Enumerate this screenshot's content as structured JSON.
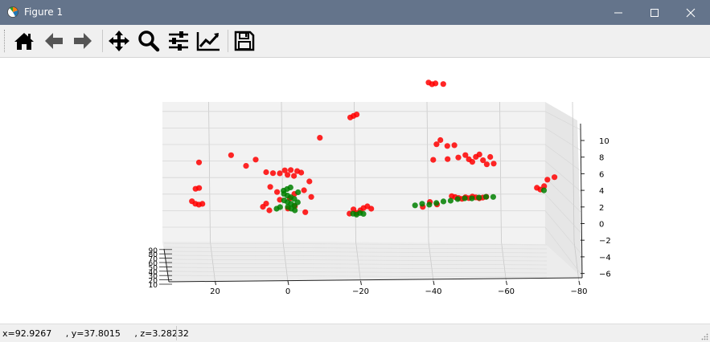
{
  "window": {
    "title": "Figure 1",
    "controls": [
      "minimize",
      "maximize",
      "close"
    ]
  },
  "toolbar": {
    "buttons": [
      {
        "name": "home",
        "icon": "home-icon"
      },
      {
        "name": "back",
        "icon": "back-arrow-icon"
      },
      {
        "name": "forward",
        "icon": "forward-arrow-icon"
      },
      {
        "name": "pan",
        "icon": "move-icon"
      },
      {
        "name": "zoom",
        "icon": "magnifier-icon"
      },
      {
        "name": "configure-subplots",
        "icon": "sliders-icon"
      },
      {
        "name": "edit-axis",
        "icon": "line-chart-icon"
      },
      {
        "name": "save",
        "icon": "floppy-disk-icon"
      }
    ]
  },
  "status": {
    "coordinates": "x=92.9267     , y=37.8015     , z=3.28232"
  },
  "colors": {
    "title_bar": "#64748b",
    "series_red": "#ff0000",
    "series_green": "#008000"
  },
  "chart_data": {
    "type": "scatter",
    "projection": "3d",
    "grid": true,
    "x_ticks": [
      "20",
      "0",
      "−20",
      "−40",
      "−60",
      "−80"
    ],
    "y_ticks": [
      "10",
      "20",
      "30",
      "40",
      "50",
      "60",
      "70",
      "80",
      "90"
    ],
    "z_ticks": [
      "10",
      "8",
      "6",
      "4",
      "2",
      "0",
      "−2",
      "−4",
      "−6"
    ],
    "series": [
      {
        "color": "#ff0000",
        "points": [
          [
            26,
            10,
            -3
          ],
          [
            25,
            12,
            -3.3
          ],
          [
            24,
            14,
            -3.4
          ],
          [
            23,
            15,
            -3.3
          ],
          [
            24,
            12,
            1.7
          ],
          [
            25,
            10,
            -1.5
          ],
          [
            24,
            11,
            -1.4
          ],
          [
            15,
            20,
            2.6
          ],
          [
            11,
            15,
            1.3
          ],
          [
            8,
            30,
            2.1
          ],
          [
            5,
            35,
            0.6
          ],
          [
            3,
            40,
            0.5
          ],
          [
            1,
            45,
            0.5
          ],
          [
            0,
            30,
            0.8
          ],
          [
            -1,
            40,
            0.3
          ],
          [
            -2,
            45,
            0.9
          ],
          [
            -3,
            50,
            0.2
          ],
          [
            -4,
            55,
            0.8
          ],
          [
            -5,
            50,
            0.6
          ],
          [
            2,
            35,
            -1.8
          ],
          [
            -6,
            60,
            -1.5
          ],
          [
            -7,
            40,
            -0.5
          ],
          [
            -3,
            45,
            -2
          ],
          [
            -2,
            55,
            -2.5
          ],
          [
            4,
            30,
            -1.2
          ],
          [
            5,
            35,
            -3.2
          ],
          [
            6,
            30,
            -3.6
          ],
          [
            4,
            40,
            -4
          ],
          [
            -1,
            35,
            -3.8
          ],
          [
            -6,
            45,
            -4.2
          ],
          [
            -3,
            40,
            -3.5
          ],
          [
            1,
            45,
            -2.7
          ],
          [
            -8,
            60,
            -2.3
          ],
          [
            -10,
            45,
            4.8
          ],
          [
            -18,
            30,
            7.2
          ],
          [
            -19,
            35,
            7.4
          ],
          [
            -20,
            40,
            7.6
          ],
          [
            -20,
            45,
            -4.3
          ],
          [
            -21,
            40,
            -4
          ],
          [
            -22,
            45,
            -3.7
          ],
          [
            -19,
            35,
            -3.9
          ],
          [
            -24,
            40,
            -3.8
          ],
          [
            -23,
            42,
            -3.5
          ],
          [
            -18,
            38,
            -4.4
          ],
          [
            -40,
            50,
            11.5
          ],
          [
            -41,
            52,
            11.3
          ],
          [
            -42,
            54,
            11.4
          ],
          [
            -44,
            48,
            11.3
          ],
          [
            -43,
            40,
            4.5
          ],
          [
            -42,
            42,
            4.0
          ],
          [
            -45,
            44,
            3.8
          ],
          [
            -47,
            46,
            3.9
          ],
          [
            -41,
            38,
            2.1
          ],
          [
            -45,
            40,
            2.2
          ],
          [
            -48,
            43,
            2.4
          ],
          [
            -50,
            45,
            2.7
          ],
          [
            -51,
            47,
            2.2
          ],
          [
            -52,
            49,
            1.9
          ],
          [
            -53,
            50,
            2.5
          ],
          [
            -54,
            51,
            2.8
          ],
          [
            -55,
            52,
            2.1
          ],
          [
            -56,
            50,
            1.6
          ],
          [
            -57,
            52,
            2.5
          ],
          [
            -58,
            54,
            1.7
          ],
          [
            -46,
            35,
            -2.3
          ],
          [
            -47,
            38,
            -2.4
          ],
          [
            -48,
            40,
            -2.5
          ],
          [
            -49,
            42,
            -2.6
          ],
          [
            -50,
            44,
            -2.4
          ],
          [
            -51,
            46,
            -2.5
          ],
          [
            -52,
            48,
            -2.3
          ],
          [
            -53,
            50,
            -2.4
          ],
          [
            -54,
            52,
            -2.5
          ],
          [
            -55,
            54,
            -2.4
          ],
          [
            -56,
            56,
            -2.3
          ],
          [
            -40,
            35,
            -3.0
          ],
          [
            -42,
            37,
            -3.3
          ],
          [
            -38,
            33,
            -3.6
          ],
          [
            -70,
            60,
            -1.2
          ],
          [
            -71,
            62,
            -1.4
          ],
          [
            -73,
            64,
            -0.2
          ],
          [
            -75,
            66,
            0.1
          ],
          [
            -72,
            60,
            -1.0
          ]
        ]
      },
      {
        "color": "#008000",
        "points": [
          [
            0,
            40,
            -2.0
          ],
          [
            -1,
            42,
            -2.2
          ],
          [
            -2,
            44,
            -2.4
          ],
          [
            -3,
            46,
            -2.6
          ],
          [
            0,
            38,
            -2.8
          ],
          [
            -1,
            40,
            -3.0
          ],
          [
            -2,
            42,
            -3.2
          ],
          [
            -3,
            44,
            -3.4
          ],
          [
            -1,
            36,
            -3.6
          ],
          [
            -2,
            38,
            -3.8
          ],
          [
            -3,
            40,
            -4.0
          ],
          [
            0,
            44,
            -1.6
          ],
          [
            -1,
            46,
            -1.4
          ],
          [
            -2,
            48,
            -1.2
          ],
          [
            1,
            42,
            -3.6
          ],
          [
            2,
            40,
            -3.8
          ],
          [
            -4,
            48,
            -3.0
          ],
          [
            -4,
            44,
            -1.8
          ],
          [
            -20,
            42,
            -4.5
          ],
          [
            -21,
            44,
            -4.3
          ],
          [
            -22,
            46,
            -4.4
          ],
          [
            -19,
            40,
            -4.4
          ],
          [
            -38,
            40,
            -3.2
          ],
          [
            -40,
            42,
            -3.3
          ],
          [
            -42,
            44,
            -3.1
          ],
          [
            -44,
            46,
            -2.9
          ],
          [
            -46,
            48,
            -2.8
          ],
          [
            -48,
            50,
            -2.6
          ],
          [
            -50,
            52,
            -2.5
          ],
          [
            -52,
            54,
            -2.5
          ],
          [
            -54,
            56,
            -2.4
          ],
          [
            -56,
            58,
            -2.3
          ],
          [
            -58,
            60,
            -2.3
          ],
          [
            -36,
            38,
            -3.4
          ],
          [
            -72,
            62,
            -1.5
          ]
        ]
      }
    ]
  }
}
